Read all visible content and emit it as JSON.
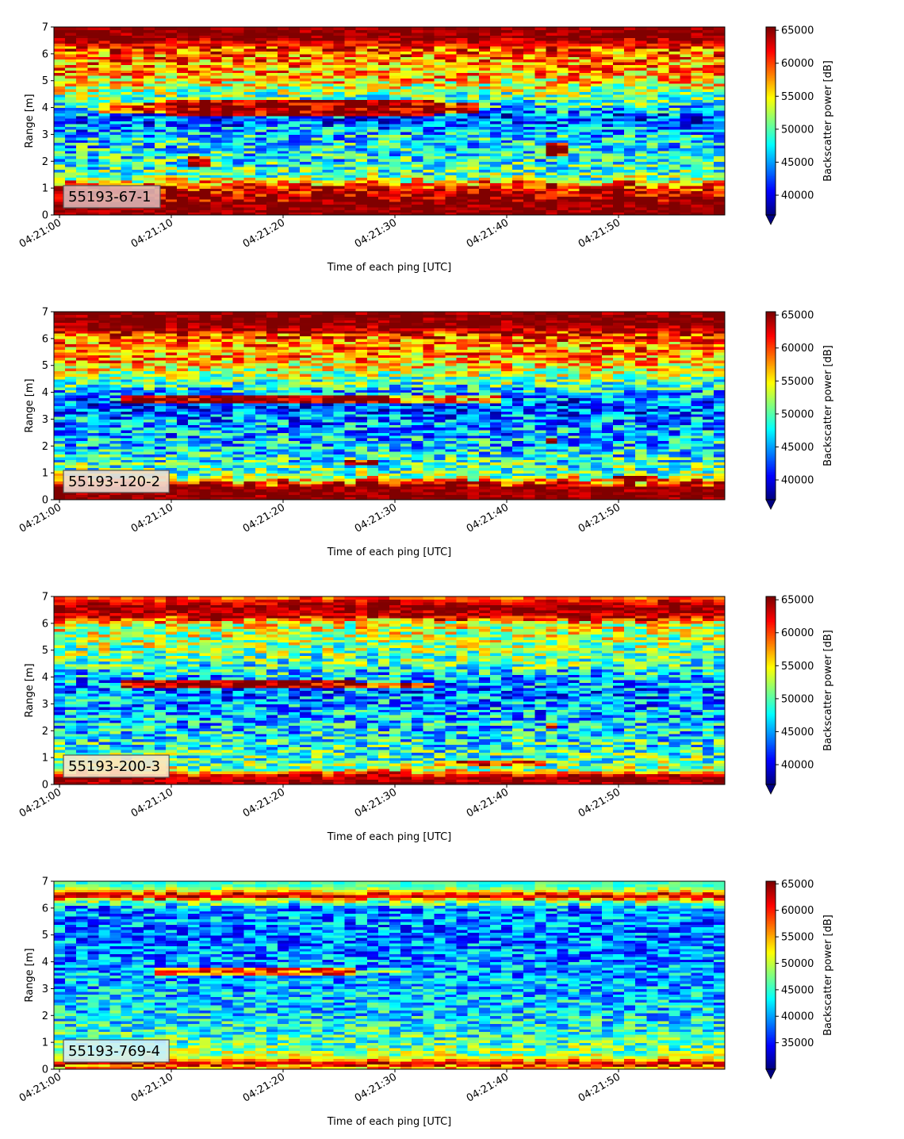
{
  "colormap": "jet",
  "chart_data": [
    {
      "type": "heatmap",
      "label": "55193-67-1",
      "label_color": "#dcb4b4",
      "xlabel": "Time of each ping [UTC]",
      "ylabel": "Range [m]",
      "colorbar_label": "Backscatter power [dB]",
      "x_range": [
        "04:21:00",
        "04:21:59"
      ],
      "x_ticks": [
        "04:21:00",
        "04:21:10",
        "04:21:20",
        "04:21:30",
        "04:21:40",
        "04:21:50"
      ],
      "ylim": [
        0,
        7
      ],
      "y_ticks": [
        "0",
        "1",
        "2",
        "3",
        "4",
        "5",
        "6",
        "7"
      ],
      "clim": [
        37000,
        65500
      ],
      "cbar_ticks": [
        "40000",
        "45000",
        "50000",
        "55000",
        "60000",
        "65000"
      ],
      "cbar_extend": "min",
      "profile": [
        {
          "range": 0.0,
          "power": 65500
        },
        {
          "range": 0.25,
          "power": 65500
        },
        {
          "range": 0.7,
          "power": 65500
        },
        {
          "range": 0.95,
          "power": 63000
        },
        {
          "range": 1.15,
          "power": 60000
        },
        {
          "range": 1.4,
          "power": 51000
        },
        {
          "range": 2.0,
          "power": 48000
        },
        {
          "range": 3.0,
          "power": 47000
        },
        {
          "range": 3.6,
          "power": 42000
        },
        {
          "range": 4.0,
          "power": 47000
        },
        {
          "range": 4.6,
          "power": 52000
        },
        {
          "range": 5.2,
          "power": 57000
        },
        {
          "range": 6.0,
          "power": 59000
        },
        {
          "range": 6.4,
          "power": 62000
        },
        {
          "range": 6.6,
          "power": 65500
        },
        {
          "range": 7.0,
          "power": 65500
        }
      ],
      "features": [
        {
          "t0": 10,
          "t1": 34,
          "r0": 3.75,
          "r1": 4.25,
          "power": 65500
        },
        {
          "t0": 4,
          "t1": 38,
          "r0": 3.85,
          "r1": 4.2,
          "power": 60500
        },
        {
          "t0": 43.8,
          "t1": 45.8,
          "r0": 2.2,
          "r1": 2.7,
          "power": 64500
        },
        {
          "t0": 12.5,
          "t1": 13.8,
          "r0": 1.8,
          "r1": 2.2,
          "power": 61000
        }
      ]
    },
    {
      "type": "heatmap",
      "label": "55193-120-2",
      "label_color": "#f0dcd2",
      "xlabel": "Time of each ping [UTC]",
      "ylabel": "Range [m]",
      "colorbar_label": "Backscatter power [dB]",
      "x_range": [
        "04:21:00",
        "04:21:59"
      ],
      "x_ticks": [
        "04:21:00",
        "04:21:10",
        "04:21:20",
        "04:21:30",
        "04:21:40",
        "04:21:50"
      ],
      "ylim": [
        0,
        7
      ],
      "y_ticks": [
        "0",
        "1",
        "2",
        "3",
        "4",
        "5",
        "6",
        "7"
      ],
      "clim": [
        37000,
        65500
      ],
      "cbar_ticks": [
        "40000",
        "45000",
        "50000",
        "55000",
        "60000",
        "65000"
      ],
      "cbar_extend": "min",
      "profile": [
        {
          "range": 0.0,
          "power": 65500
        },
        {
          "range": 0.5,
          "power": 65500
        },
        {
          "range": 0.65,
          "power": 60000
        },
        {
          "range": 0.9,
          "power": 51000
        },
        {
          "range": 2.0,
          "power": 46500
        },
        {
          "range": 3.0,
          "power": 44500
        },
        {
          "range": 3.5,
          "power": 42000
        },
        {
          "range": 4.0,
          "power": 46000
        },
        {
          "range": 4.6,
          "power": 52000
        },
        {
          "range": 5.2,
          "power": 57000
        },
        {
          "range": 6.0,
          "power": 59000
        },
        {
          "range": 6.3,
          "power": 63000
        },
        {
          "range": 6.5,
          "power": 65500
        },
        {
          "range": 7.0,
          "power": 65500
        }
      ],
      "features": [
        {
          "t0": 6,
          "t1": 30,
          "r0": 3.6,
          "r1": 3.9,
          "power": 65500
        },
        {
          "t0": 30,
          "t1": 40,
          "r0": 3.65,
          "r1": 3.85,
          "power": 57000
        },
        {
          "t0": 43.8,
          "t1": 45,
          "r0": 2.1,
          "r1": 2.3,
          "power": 64000
        },
        {
          "t0": 50,
          "t1": 53.5,
          "r0": 0.7,
          "r1": 0.9,
          "power": 64000
        },
        {
          "t0": 26,
          "t1": 29,
          "r0": 1.3,
          "r1": 1.5,
          "power": 61000
        }
      ]
    },
    {
      "type": "heatmap",
      "label": "55193-200-3",
      "label_color": "#fae6c8",
      "xlabel": "Time of each ping [UTC]",
      "ylabel": "Range [m]",
      "colorbar_label": "Backscatter power [dB]",
      "x_range": [
        "04:21:00",
        "04:21:59"
      ],
      "x_ticks": [
        "04:21:00",
        "04:21:10",
        "04:21:20",
        "04:21:30",
        "04:21:40",
        "04:21:50"
      ],
      "ylim": [
        0,
        7
      ],
      "y_ticks": [
        "0",
        "1",
        "2",
        "3",
        "4",
        "5",
        "6",
        "7"
      ],
      "clim": [
        37000,
        65500
      ],
      "cbar_ticks": [
        "40000",
        "45000",
        "50000",
        "55000",
        "60000",
        "65000"
      ],
      "cbar_extend": "min",
      "profile": [
        {
          "range": 0.0,
          "power": 65000
        },
        {
          "range": 0.35,
          "power": 64000
        },
        {
          "range": 0.55,
          "power": 53000
        },
        {
          "range": 0.9,
          "power": 50000
        },
        {
          "range": 2.0,
          "power": 47000
        },
        {
          "range": 3.0,
          "power": 45000
        },
        {
          "range": 3.5,
          "power": 44000
        },
        {
          "range": 4.0,
          "power": 46000
        },
        {
          "range": 4.6,
          "power": 50000
        },
        {
          "range": 5.2,
          "power": 52000
        },
        {
          "range": 6.0,
          "power": 54000
        },
        {
          "range": 6.2,
          "power": 62000
        },
        {
          "range": 6.6,
          "power": 65500
        },
        {
          "range": 6.85,
          "power": 62000
        },
        {
          "range": 7.0,
          "power": 58000
        }
      ],
      "features": [
        {
          "t0": 6,
          "t1": 27,
          "r0": 3.6,
          "r1": 3.85,
          "power": 65500
        },
        {
          "t0": 27,
          "t1": 34,
          "r0": 3.65,
          "r1": 3.8,
          "power": 60000
        },
        {
          "t0": 43.8,
          "t1": 45,
          "r0": 2.1,
          "r1": 2.3,
          "power": 63500
        },
        {
          "t0": 34,
          "t1": 44,
          "r0": 0.7,
          "r1": 0.9,
          "power": 61000
        }
      ]
    },
    {
      "type": "heatmap",
      "label": "55193-769-4",
      "label_color": "#d2f0fa",
      "xlabel": "Time of each ping [UTC]",
      "ylabel": "Range [m]",
      "colorbar_label": "Backscatter power [dB]",
      "x_range": [
        "04:21:00",
        "04:21:59"
      ],
      "x_ticks": [
        "04:21:00",
        "04:21:10",
        "04:21:20",
        "04:21:30",
        "04:21:40",
        "04:21:50"
      ],
      "ylim": [
        0,
        7
      ],
      "y_ticks": [
        "0",
        "1",
        "2",
        "3",
        "4",
        "5",
        "6",
        "7"
      ],
      "clim": [
        30000,
        65500
      ],
      "cbar_ticks": [
        "35000",
        "40000",
        "45000",
        "50000",
        "55000",
        "60000",
        "65000"
      ],
      "cbar_extend": "min",
      "profile": [
        {
          "range": 0.0,
          "power": 58000
        },
        {
          "range": 0.1,
          "power": 52000
        },
        {
          "range": 0.2,
          "power": 65500
        },
        {
          "range": 0.3,
          "power": 58000
        },
        {
          "range": 0.45,
          "power": 50000
        },
        {
          "range": 1.0,
          "power": 45500
        },
        {
          "range": 2.0,
          "power": 42500
        },
        {
          "range": 3.0,
          "power": 41000
        },
        {
          "range": 4.0,
          "power": 39500
        },
        {
          "range": 5.0,
          "power": 39000
        },
        {
          "range": 6.0,
          "power": 39500
        },
        {
          "range": 6.3,
          "power": 50000
        },
        {
          "range": 6.45,
          "power": 65500
        },
        {
          "range": 6.6,
          "power": 55000
        },
        {
          "range": 6.8,
          "power": 46000
        },
        {
          "range": 7.0,
          "power": 45000
        }
      ],
      "features": [
        {
          "t0": 9,
          "t1": 27,
          "r0": 3.55,
          "r1": 3.75,
          "power": 58000
        },
        {
          "t0": 27,
          "t1": 32,
          "r0": 3.6,
          "r1": 3.72,
          "power": 52000
        }
      ]
    }
  ]
}
